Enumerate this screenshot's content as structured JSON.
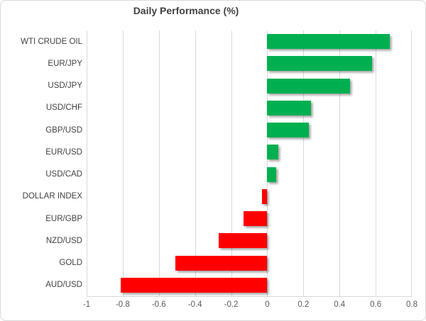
{
  "chart_data": {
    "type": "bar",
    "orientation": "horizontal",
    "title": "Daily Performance (%)",
    "categories": [
      "WTI CRUDE OIL",
      "EUR/JPY",
      "USD/JPY",
      "USD/CHF",
      "GBP/USD",
      "EUR/USD",
      "USD/CAD",
      "DOLLAR INDEX",
      "EUR/GBP",
      "NZD/USD",
      "GOLD",
      "AUD/USD"
    ],
    "values": [
      0.68,
      0.58,
      0.46,
      0.24,
      0.23,
      0.06,
      0.05,
      -0.03,
      -0.13,
      -0.27,
      -0.51,
      -0.81
    ],
    "xlim": [
      -1,
      0.8
    ],
    "xticks": [
      -1,
      -0.8,
      -0.6,
      -0.4,
      -0.2,
      0,
      0.2,
      0.4,
      0.6,
      0.8
    ],
    "xtick_labels": [
      "-1",
      "-0.8",
      "-0.6",
      "-0.4",
      "-0.2",
      "0",
      "0.2",
      "0.4",
      "0.6",
      "0.8"
    ],
    "grid": true,
    "legend": false,
    "colors": {
      "positive": "#00B050",
      "negative": "#FF0000",
      "gridline": "#D9D9D9",
      "title_text": "#404040",
      "category_text": "#404040",
      "tick_text": "#595959"
    }
  }
}
